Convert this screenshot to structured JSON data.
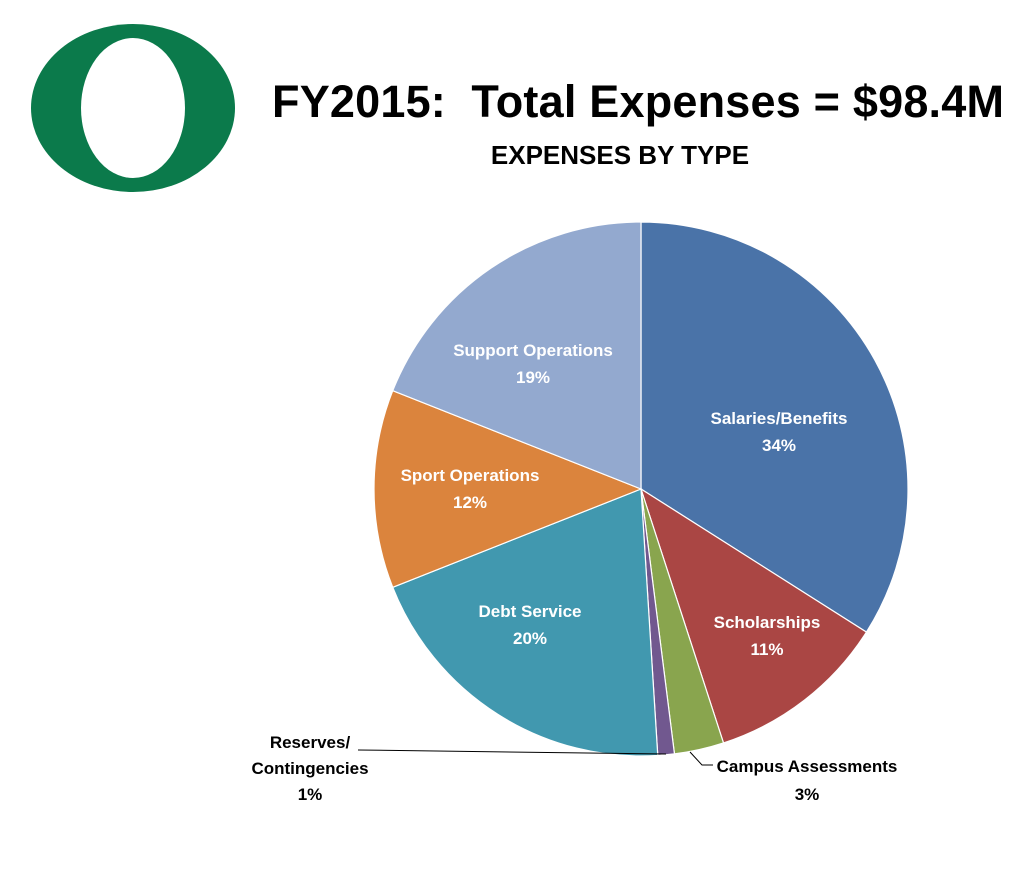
{
  "title": "FY2015:  Total Expenses = $98.4M",
  "subtitle": "EXPENSES BY TYPE",
  "colors": {
    "logo": "#0b7a4b"
  },
  "chart_data": {
    "type": "pie",
    "title": "FY2015:  Total Expenses = $98.4M",
    "subtitle": "EXPENSES BY TYPE",
    "start_angle_deg": 0,
    "direction": "clockwise",
    "slices": [
      {
        "label": "Salaries/Benefits",
        "value": 34,
        "pct_label": "34%",
        "color": "#4a73a8",
        "label_pos": "inside"
      },
      {
        "label": "Scholarships",
        "value": 11,
        "pct_label": "11%",
        "color": "#aa4644",
        "label_pos": "inside"
      },
      {
        "label": "Campus Assessments",
        "value": 3,
        "pct_label": "3%",
        "color": "#89a54e",
        "label_pos": "outside"
      },
      {
        "label": "Reserves/ Contingencies",
        "value": 1,
        "pct_label": "1%",
        "color": "#71588f",
        "label_pos": "outside"
      },
      {
        "label": "Debt Service",
        "value": 20,
        "pct_label": "20%",
        "color": "#4198af",
        "label_pos": "inside"
      },
      {
        "label": "Sport Operations",
        "value": 12,
        "pct_label": "12%",
        "color": "#db843d",
        "label_pos": "inside"
      },
      {
        "label": "Support Operations",
        "value": 19,
        "pct_label": "19%",
        "color": "#93a9cf",
        "label_pos": "inside"
      }
    ]
  }
}
